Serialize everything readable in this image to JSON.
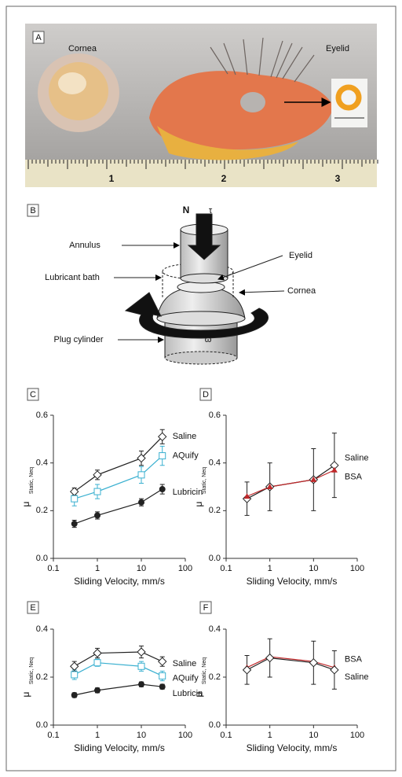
{
  "panel_a": {
    "label": "A",
    "cornea": "Cornea",
    "eyelid": "Eyelid",
    "ruler": [
      1,
      2,
      3
    ]
  },
  "panel_b": {
    "label": "B",
    "force": "N",
    "torque": "τ",
    "annulus": "Annulus",
    "eyelid": "Eyelid",
    "bath": "Lubricant bath",
    "cornea": "Cornea",
    "plug": "Plug cylinder",
    "omega": "ω"
  },
  "chart_data": [
    {
      "type": "line",
      "panel": "C",
      "x": [
        0.3,
        1,
        10,
        30
      ],
      "xlim": [
        0.1,
        100
      ],
      "xticks": [
        0.1,
        1,
        10,
        100
      ],
      "log_x": true,
      "ylim": [
        0,
        0.6
      ],
      "yticks": [
        {
          "value": 0,
          "label": "0.0"
        },
        0.2,
        0.4,
        0.6
      ],
      "xlabel": "Sliding Velocity, mm/s",
      "ylabel": "μ",
      "ylabel_subscript": "Static, Neq",
      "series": [
        {
          "name": "Saline",
          "color": "#222222",
          "marker": "diamond",
          "values": [
            0.28,
            0.35,
            0.42,
            0.51
          ],
          "errors": [
            0.015,
            0.02,
            0.03,
            0.03
          ]
        },
        {
          "name": "AQuify",
          "color": "#3ab0d0",
          "marker": "square",
          "values": [
            0.25,
            0.28,
            0.35,
            0.43
          ],
          "errors": [
            0.03,
            0.03,
            0.035,
            0.04
          ]
        },
        {
          "name": "Lubricin",
          "color": "#222222",
          "marker": "circle",
          "values": [
            0.145,
            0.18,
            0.235,
            0.29
          ],
          "errors": [
            0.015,
            0.015,
            0.015,
            0.02
          ]
        }
      ]
    },
    {
      "type": "line",
      "panel": "D",
      "x": [
        0.3,
        1,
        10,
        30
      ],
      "xlim": [
        0.1,
        100
      ],
      "xticks": [
        0.1,
        1,
        10,
        100
      ],
      "log_x": true,
      "ylim": [
        0,
        0.6
      ],
      "yticks": [
        {
          "value": 0,
          "label": "0.0"
        },
        0.2,
        0.4,
        0.6
      ],
      "xlabel": "Sliding Velocity, mm/s",
      "ylabel": "μ",
      "ylabel_subscript": "Static, Neq",
      "series": [
        {
          "name": "Saline",
          "color": "#222222",
          "marker": "diamond",
          "values": [
            0.25,
            0.3,
            0.33,
            0.39
          ],
          "errors": [
            0.07,
            0.1,
            0.13,
            0.135
          ]
        },
        {
          "name": "BSA",
          "color": "#c0282a",
          "marker": "triangle",
          "values": [
            0.26,
            0.3,
            0.33,
            0.37
          ]
        }
      ]
    },
    {
      "type": "line",
      "panel": "E",
      "x": [
        0.3,
        1,
        10,
        30
      ],
      "xlim": [
        0.1,
        100
      ],
      "xticks": [
        0.1,
        1,
        10,
        100
      ],
      "log_x": true,
      "ylim": [
        0,
        0.4
      ],
      "yticks": [
        {
          "value": 0,
          "label": "0.0"
        },
        0.2,
        0.4
      ],
      "xlabel": "Sliding Velocity, mm/s",
      "ylabel": "μ",
      "ylabel_subscript": "Static, Neq",
      "series": [
        {
          "name": "Saline",
          "color": "#222222",
          "marker": "diamond",
          "values": [
            0.245,
            0.3,
            0.305,
            0.265
          ],
          "errors": [
            0.02,
            0.02,
            0.025,
            0.02
          ]
        },
        {
          "name": "AQuify",
          "color": "#3ab0d0",
          "marker": "square",
          "values": [
            0.21,
            0.26,
            0.245,
            0.205
          ],
          "errors": [
            0.02,
            0.015,
            0.02,
            0.02
          ]
        },
        {
          "name": "Lubricin",
          "color": "#222222",
          "marker": "circle",
          "values": [
            0.125,
            0.145,
            0.17,
            0.16
          ],
          "errors": [
            0.01,
            0.01,
            0.01,
            0.01
          ]
        }
      ]
    },
    {
      "type": "line",
      "panel": "F",
      "x": [
        0.3,
        1,
        10,
        30
      ],
      "xlim": [
        0.1,
        100
      ],
      "xticks": [
        0.1,
        1,
        10,
        100
      ],
      "log_x": true,
      "ylim": [
        0,
        0.4
      ],
      "yticks": [
        {
          "value": 0,
          "label": "0.0"
        },
        0.2,
        0.4
      ],
      "xlabel": "Sliding Velocity, mm/s",
      "ylabel": "μ",
      "ylabel_subscript": "Static, Neq",
      "series": [
        {
          "name": "BSA",
          "color": "#c0282a",
          "marker": "triangle",
          "values": [
            0.24,
            0.285,
            0.265,
            0.24
          ]
        },
        {
          "name": "Saline",
          "color": "#222222",
          "marker": "diamond",
          "values": [
            0.23,
            0.28,
            0.26,
            0.23
          ],
          "errors": [
            0.06,
            0.08,
            0.09,
            0.08
          ]
        }
      ]
    }
  ]
}
